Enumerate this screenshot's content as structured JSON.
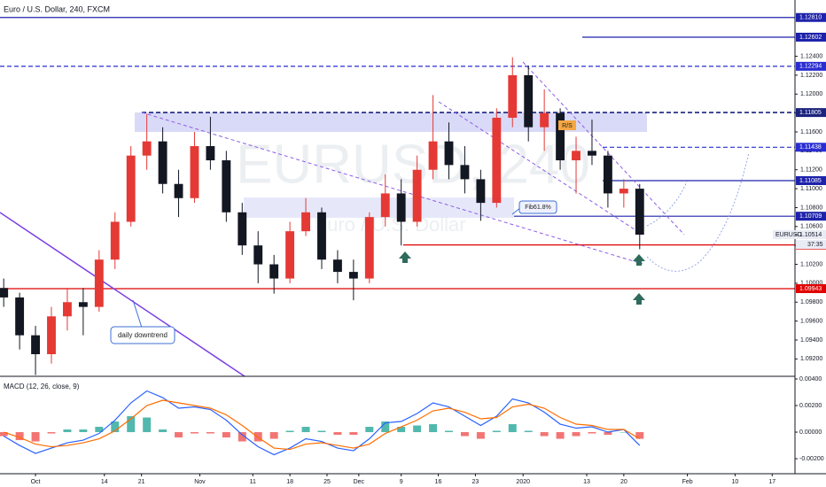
{
  "chart_data": {
    "type": "candlestick",
    "title": "Euro / U.S. Dollar, 240, FXCM",
    "watermark": "EURUSD, 240",
    "watermark_subtitle": "Euro / U.S. Dollar",
    "x": [
      -6,
      -3,
      0,
      3,
      6,
      9,
      12,
      15,
      18,
      21,
      24,
      27,
      30,
      33,
      36,
      39,
      42,
      45,
      48,
      51,
      54,
      57,
      60,
      63,
      66,
      69,
      72,
      75,
      78,
      81,
      84,
      87,
      90,
      93,
      96,
      99,
      102,
      105,
      108,
      111,
      114
    ],
    "open": [
      1.0995,
      1.0985,
      1.0945,
      1.0925,
      1.0965,
      1.098,
      1.0975,
      1.1025,
      1.1065,
      1.1135,
      1.115,
      1.1105,
      1.109,
      1.1145,
      1.113,
      1.1075,
      1.104,
      1.102,
      1.1005,
      1.1055,
      1.1075,
      1.1025,
      1.1012,
      1.1005,
      1.107,
      1.1095,
      1.1065,
      1.112,
      1.115,
      1.1125,
      1.111,
      1.1085,
      1.1175,
      1.122,
      1.1165,
      1.118,
      1.113,
      1.114,
      1.1135,
      1.1095,
      1.11
    ],
    "high": [
      1.1005,
      1.099,
      1.0955,
      1.0975,
      1.0995,
      1.0995,
      1.1035,
      1.1075,
      1.1145,
      1.1179,
      1.1165,
      1.112,
      1.116,
      1.1176,
      1.114,
      1.1085,
      1.1055,
      1.103,
      1.1065,
      1.109,
      1.108,
      1.1035,
      1.1025,
      1.1075,
      1.1115,
      1.111,
      1.1135,
      1.1199,
      1.117,
      1.1145,
      1.112,
      1.1185,
      1.1239,
      1.123,
      1.1205,
      1.1185,
      1.1155,
      1.1173,
      1.114,
      1.111,
      1.1105
    ],
    "low": [
      1.0975,
      1.093,
      1.0903,
      1.0915,
      1.095,
      1.0945,
      1.097,
      1.1015,
      1.106,
      1.112,
      1.1095,
      1.107,
      1.1085,
      1.112,
      1.1065,
      1.103,
      1.1,
      1.0989,
      1.1,
      1.105,
      1.1015,
      1.1,
      1.0982,
      1.1,
      1.106,
      1.104,
      1.106,
      1.111,
      1.111,
      1.1095,
      1.1066,
      1.108,
      1.1165,
      1.115,
      1.114,
      1.112,
      1.1095,
      1.1125,
      1.108,
      1.108,
      1.1036
    ],
    "close": [
      1.0985,
      1.0945,
      1.0925,
      1.0965,
      1.098,
      1.0975,
      1.1025,
      1.1065,
      1.1135,
      1.115,
      1.1105,
      1.109,
      1.1145,
      1.113,
      1.1075,
      1.104,
      1.102,
      1.1005,
      1.1055,
      1.1075,
      1.1025,
      1.1012,
      1.1005,
      1.107,
      1.1095,
      1.1065,
      1.112,
      1.115,
      1.1125,
      1.111,
      1.1085,
      1.1175,
      1.122,
      1.1165,
      1.118,
      1.113,
      1.114,
      1.1135,
      1.1095,
      1.11,
      1.10514
    ],
    "up_color": "#e53935",
    "down_color": "#131722",
    "xlim": [
      -6.7,
      143.3
    ],
    "xticks": [
      {
        "value": 0,
        "label": "Oct"
      },
      {
        "value": 13,
        "label": "14"
      },
      {
        "value": 20,
        "label": "21"
      },
      {
        "value": 31,
        "label": "Nov"
      },
      {
        "value": 41,
        "label": "11"
      },
      {
        "value": 48,
        "label": "18"
      },
      {
        "value": 55,
        "label": "25"
      },
      {
        "value": 61,
        "label": "Dec"
      },
      {
        "value": 69,
        "label": "9"
      },
      {
        "value": 76,
        "label": "16"
      },
      {
        "value": 83,
        "label": "23"
      },
      {
        "value": 92,
        "label": "2020"
      },
      {
        "value": 104,
        "label": "13"
      },
      {
        "value": 111,
        "label": "20"
      },
      {
        "value": 123,
        "label": "Feb"
      },
      {
        "value": 132,
        "label": "10"
      },
      {
        "value": 139,
        "label": "17"
      }
    ],
    "ylim": [
      1.09016,
      1.12995
    ],
    "yticks": [
      {
        "value": 1.092,
        "label": "1.09200"
      },
      {
        "value": 1.094,
        "label": "1.09400"
      },
      {
        "value": 1.096,
        "label": "1.09600"
      },
      {
        "value": 1.098,
        "label": "1.09800"
      },
      {
        "value": 1.1,
        "label": "1.10000"
      },
      {
        "value": 1.102,
        "label": "1.10200"
      },
      {
        "value": 1.104,
        "label": "1.10400"
      },
      {
        "value": 1.106,
        "label": "1.10600"
      },
      {
        "value": 1.108,
        "label": "1.10800"
      },
      {
        "value": 1.11,
        "label": "1.11000"
      },
      {
        "value": 1.112,
        "label": "1.11200"
      },
      {
        "value": 1.114,
        "label": "1.11400"
      },
      {
        "value": 1.116,
        "label": "1.11600"
      },
      {
        "value": 1.118,
        "label": "1.11800"
      },
      {
        "value": 1.12,
        "label": "1.12000"
      },
      {
        "value": 1.122,
        "label": "1.12200"
      },
      {
        "value": 1.124,
        "label": "1.12400"
      }
    ],
    "levels": [
      {
        "value": 1.1281,
        "label": "1.12810",
        "color": "#1e22aa",
        "dashed": false
      },
      {
        "value": 1.12602,
        "label": "1.12602",
        "color": "#1e22aa",
        "dashed": false
      },
      {
        "value": 1.12294,
        "label": "1.12294",
        "color": "#2a2ed0",
        "dashed": true
      },
      {
        "value": 1.11805,
        "label": "1.11805",
        "color": "#1a237e",
        "dashed": true
      },
      {
        "value": 1.11438,
        "label": "1.11438",
        "color": "#2a2ed0",
        "dashed": true
      },
      {
        "value": 1.11085,
        "label": "1.11085",
        "color": "#1e22aa",
        "dashed": false
      },
      {
        "value": 1.10709,
        "label": "1.10709",
        "color": "#1e22aa",
        "dashed": false
      },
      {
        "value": 1.10405,
        "label": "1.10405",
        "color": "#e00000",
        "dashed": false
      },
      {
        "value": 1.09943,
        "label": "1.09943",
        "color": "#e00000",
        "dashed": false
      }
    ],
    "last_price": {
      "name": "EURUSD",
      "value": 1.10514,
      "label": "1.10514"
    },
    "countdown": "37:35",
    "annotations": [
      "R/S",
      "Fib61.8%",
      "daily downtrend"
    ],
    "macd": {
      "title": "MACD (12, 26, close, 9)",
      "macd": [
        -0.0003,
        -0.001,
        -0.0016,
        -0.0012,
        -0.0008,
        -0.0006,
        -0.0001,
        0.0009,
        0.0022,
        0.0031,
        0.0026,
        0.0018,
        0.0019,
        0.0017,
        0.0009,
        -0.0002,
        -0.0011,
        -0.0017,
        -0.0012,
        -0.0005,
        -0.0007,
        -0.0012,
        -0.0014,
        -0.0005,
        0.0007,
        0.0008,
        0.0014,
        0.0022,
        0.0019,
        0.0012,
        0.0005,
        0.0012,
        0.0025,
        0.0022,
        0.0015,
        0.0006,
        0.0003,
        0.0004,
        0,
        0.0002,
        -0.001
      ],
      "signal": [
        0,
        -0.0004,
        -0.0009,
        -0.0011,
        -0.001,
        -0.0008,
        -0.0005,
        0.0001,
        0.001,
        0.002,
        0.0024,
        0.0022,
        0.002,
        0.0018,
        0.0013,
        0.0005,
        -0.0004,
        -0.0012,
        -0.0013,
        -0.0009,
        -0.0008,
        -0.001,
        -0.0012,
        -0.0009,
        -0.0001,
        0.0004,
        0.0009,
        0.0016,
        0.0018,
        0.0015,
        0.001,
        0.0011,
        0.0019,
        0.0021,
        0.0018,
        0.0011,
        0.0006,
        0.0005,
        0.0002,
        0.0002,
        -0.0005
      ],
      "histogram": [
        -0.0003,
        -0.0006,
        -0.0007,
        -0.0001,
        0.0002,
        0.0002,
        0.0004,
        0.0008,
        0.0012,
        0.0011,
        0.0002,
        -0.0004,
        -0.0001,
        -0.0001,
        -0.0004,
        -0.0007,
        -0.0007,
        -0.0005,
        0.0001,
        0.0004,
        0.0001,
        -0.0002,
        -0.0002,
        0.0004,
        0.0008,
        0.0004,
        0.0005,
        0.0006,
        0.0001,
        -0.0003,
        -0.0005,
        0.0001,
        0.0006,
        0.0001,
        -0.0003,
        -0.0005,
        -0.0003,
        -0.0001,
        -0.0002,
        0,
        -0.0005
      ],
      "ylim": [
        -0.00313,
        0.0042
      ],
      "yticks": [
        {
          "value": -0.002,
          "label": "-0.00200"
        },
        {
          "value": 0,
          "label": "0.00000"
        },
        {
          "value": 0.002,
          "label": "0.00200"
        },
        {
          "value": 0.004,
          "label": "0.00400"
        }
      ],
      "macd_color": "#2962ff",
      "signal_color": "#ff6d00",
      "pos_color": "#26a69a",
      "neg_color": "#ef5350"
    }
  }
}
